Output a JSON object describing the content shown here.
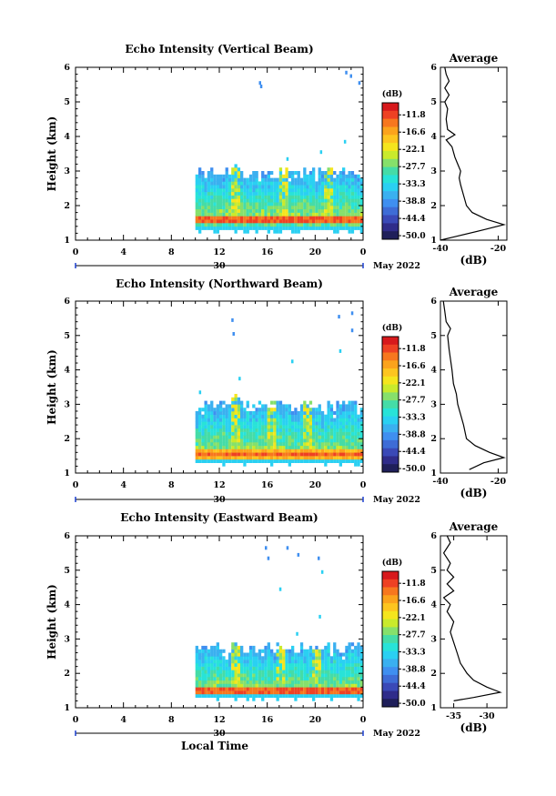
{
  "common": {
    "colorbar_unit": "(dB)",
    "colorbar_labels": [
      "-11.8",
      "-16.6",
      "-22.1",
      "-27.7",
      "-33.3",
      "-38.8",
      "-44.4",
      "-50.0"
    ],
    "colors": [
      "#d7191c",
      "#ee4123",
      "#f7771e",
      "#fba31c",
      "#fdc51f",
      "#f5e51d",
      "#c9ea2c",
      "#86e06b",
      "#45dca7",
      "#28e3d8",
      "#2ad0f2",
      "#3ab0f0",
      "#3f8ff0",
      "#3e6cd6",
      "#3a49b7",
      "#2f2c8a",
      "#1f1f5a"
    ],
    "xticks": [
      "0",
      "4",
      "8",
      "12",
      "16",
      "20",
      "0"
    ],
    "date_day": "30",
    "date_month": "May 2022",
    "avg_title": "Average",
    "avg_xlabel": "(dB)",
    "xlabel": "Local Time"
  },
  "chart_data": [
    {
      "type": "heatmap",
      "title": "Echo Intensity (Vertical Beam)",
      "ylabel": "Height (km)",
      "ylim": [
        1,
        6
      ],
      "yticks": [
        "1",
        "2",
        "3",
        "4",
        "5",
        "6"
      ],
      "xlim": [
        0,
        24
      ],
      "data_start_hour": 10,
      "top_km": 3.0,
      "peak_km": 1.55,
      "plumes": [
        [
          13.3,
          3.2
        ],
        [
          17.3,
          2.9
        ],
        [
          21.0,
          3.1
        ]
      ],
      "sparse": [
        [
          15.3,
          5.6
        ],
        [
          15.4,
          5.5
        ],
        [
          22.5,
          5.9
        ],
        [
          22.9,
          5.8
        ],
        [
          23.6,
          5.6
        ],
        [
          22.4,
          3.9
        ],
        [
          20.4,
          3.6
        ],
        [
          17.6,
          3.4
        ]
      ],
      "profile": {
        "xlim": [
          -40,
          -17
        ],
        "xticks": [
          "-40",
          "-20"
        ],
        "yticks": [
          "1",
          "2",
          "3",
          "4",
          "5",
          "6"
        ],
        "points": [
          [
            -40,
            1.0
          ],
          [
            -35,
            1.1
          ],
          [
            -25,
            1.3
          ],
          [
            -18,
            1.45
          ],
          [
            -24,
            1.6
          ],
          [
            -29,
            1.8
          ],
          [
            -31,
            2.0
          ],
          [
            -32,
            2.3
          ],
          [
            -33,
            2.6
          ],
          [
            -33.5,
            2.8
          ],
          [
            -33,
            3.0
          ],
          [
            -34,
            3.2
          ],
          [
            -35,
            3.4
          ],
          [
            -36,
            3.7
          ],
          [
            -38,
            3.9
          ],
          [
            -35,
            4.05
          ],
          [
            -37.5,
            4.2
          ],
          [
            -38,
            4.5
          ],
          [
            -37.5,
            4.8
          ],
          [
            -38.5,
            5.0
          ],
          [
            -37,
            5.2
          ],
          [
            -38.5,
            5.4
          ],
          [
            -37,
            5.6
          ],
          [
            -38,
            5.8
          ],
          [
            -38.5,
            6.0
          ]
        ]
      }
    },
    {
      "type": "heatmap",
      "title": "Echo Intensity (Northward Beam)",
      "ylabel": "Height (km)",
      "ylim": [
        1,
        6
      ],
      "yticks": [
        "1",
        "2",
        "3",
        "4",
        "5",
        "6"
      ],
      "xlim": [
        0,
        24
      ],
      "data_start_hour": 10,
      "top_km": 3.0,
      "peak_km": 1.5,
      "plumes": [
        [
          13.3,
          3.3
        ],
        [
          16.3,
          3.0
        ],
        [
          19.3,
          3.0
        ]
      ],
      "sparse": [
        [
          13.0,
          5.5
        ],
        [
          13.1,
          5.1
        ],
        [
          21.9,
          5.6
        ],
        [
          23.0,
          5.7
        ],
        [
          23.0,
          5.2
        ],
        [
          22.0,
          4.6
        ],
        [
          18.0,
          4.3
        ],
        [
          13.6,
          3.8
        ],
        [
          10.3,
          3.4
        ]
      ],
      "profile": {
        "xlim": [
          -40,
          -17
        ],
        "xticks": [
          "-40",
          "-20"
        ],
        "yticks": [
          "1",
          "2",
          "3",
          "4",
          "5",
          "6"
        ],
        "points": [
          [
            -30,
            1.1
          ],
          [
            -25,
            1.3
          ],
          [
            -18,
            1.45
          ],
          [
            -23,
            1.6
          ],
          [
            -28,
            1.8
          ],
          [
            -31,
            2.0
          ],
          [
            -32,
            2.4
          ],
          [
            -33,
            2.7
          ],
          [
            -34,
            3.0
          ],
          [
            -34.5,
            3.3
          ],
          [
            -35.5,
            3.6
          ],
          [
            -36,
            4.0
          ],
          [
            -36.5,
            4.3
          ],
          [
            -37,
            4.6
          ],
          [
            -37.5,
            5.0
          ],
          [
            -36.5,
            5.2
          ],
          [
            -38,
            5.4
          ],
          [
            -38.5,
            5.7
          ],
          [
            -39,
            6.0
          ]
        ]
      }
    },
    {
      "type": "heatmap",
      "title": "Echo Intensity (Eastward Beam)",
      "ylabel": "Height (km)",
      "ylim": [
        1,
        6
      ],
      "yticks": [
        "1",
        "2",
        "3",
        "4",
        "5",
        "6"
      ],
      "xlim": [
        0,
        24
      ],
      "data_start_hour": 10,
      "top_km": 2.8,
      "peak_km": 1.45,
      "plumes": [
        [
          13.3,
          2.9
        ],
        [
          17.0,
          2.8
        ],
        [
          20.0,
          2.8
        ]
      ],
      "sparse": [
        [
          15.8,
          5.7
        ],
        [
          16.0,
          5.4
        ],
        [
          17.6,
          5.7
        ],
        [
          18.5,
          5.5
        ],
        [
          20.2,
          5.4
        ],
        [
          20.5,
          5.0
        ],
        [
          17.0,
          4.5
        ],
        [
          20.3,
          3.7
        ],
        [
          18.4,
          3.2
        ]
      ],
      "profile": {
        "xlim": [
          -37,
          -27
        ],
        "xticks": [
          "-35",
          "-30"
        ],
        "yticks": [
          "1",
          "2",
          "3",
          "4",
          "5",
          "6"
        ],
        "points": [
          [
            -35,
            1.2
          ],
          [
            -32,
            1.3
          ],
          [
            -28,
            1.45
          ],
          [
            -30,
            1.6
          ],
          [
            -32,
            1.8
          ],
          [
            -33,
            2.0
          ],
          [
            -34,
            2.3
          ],
          [
            -34.5,
            2.6
          ],
          [
            -35,
            2.9
          ],
          [
            -35.5,
            3.2
          ],
          [
            -35,
            3.5
          ],
          [
            -36,
            3.8
          ],
          [
            -35.5,
            4.0
          ],
          [
            -36.5,
            4.2
          ],
          [
            -35,
            4.4
          ],
          [
            -36,
            4.6
          ],
          [
            -35,
            4.8
          ],
          [
            -36,
            5.0
          ],
          [
            -35.5,
            5.2
          ],
          [
            -36.5,
            5.5
          ],
          [
            -35.5,
            5.8
          ],
          [
            -36,
            6.0
          ]
        ]
      }
    }
  ]
}
